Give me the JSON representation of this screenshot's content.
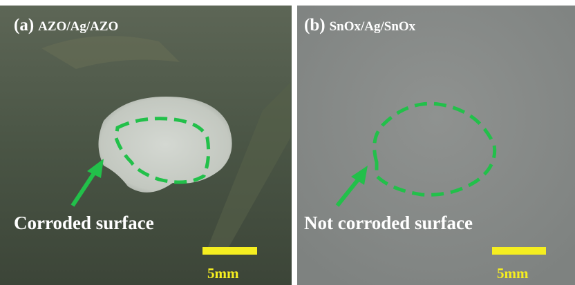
{
  "panels": [
    {
      "label": "(a)",
      "title": "AZO/Ag/AZO",
      "annotation": "Corroded surface",
      "scale_bar": "5mm"
    },
    {
      "label": "(b)",
      "title": "SnOx/Ag/SnOx",
      "annotation": "Not corroded surface",
      "scale_bar": "5mm"
    }
  ]
}
